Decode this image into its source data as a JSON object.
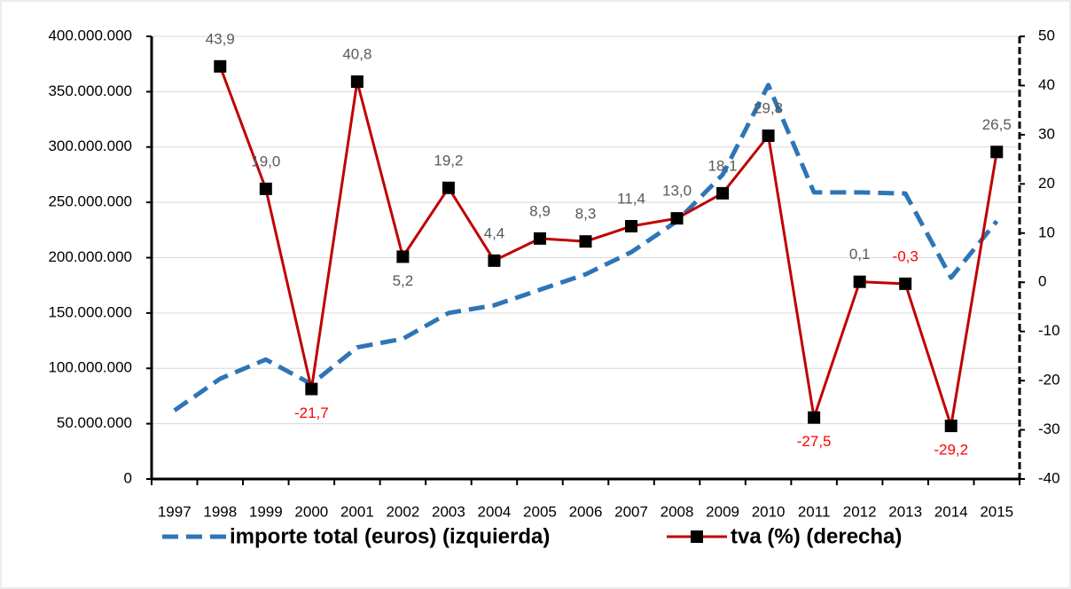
{
  "chart_data": {
    "type": "line",
    "categories": [
      "1997",
      "1998",
      "1999",
      "2000",
      "2001",
      "2002",
      "2003",
      "2004",
      "2005",
      "2006",
      "2007",
      "2008",
      "2009",
      "2010",
      "2011",
      "2012",
      "2013",
      "2014",
      "2015"
    ],
    "series": [
      {
        "name": "importe total (euros) (izquierda)",
        "color": "#2e75b6",
        "axis": "y",
        "dashed": true,
        "values": [
          62000000,
          90600000,
          108000000,
          85800000,
          119000000,
          126700000,
          150000000,
          157000000,
          171000000,
          185000000,
          205000000,
          233000000,
          275000000,
          356000000,
          259000000,
          259000000,
          258000000,
          182000000,
          233000000
        ]
      },
      {
        "name": "tva (%) (derecha)",
        "color": "#c00000",
        "axis": "y2",
        "marker": "square",
        "values": [
          null,
          43.9,
          19.0,
          -21.7,
          40.8,
          5.2,
          19.2,
          4.4,
          8.9,
          8.3,
          11.4,
          13.0,
          18.1,
          29.8,
          -27.5,
          0.1,
          -0.3,
          -29.2,
          26.5
        ],
        "value_labels": [
          null,
          "43,9",
          "19,0",
          "-21,7",
          "40,8",
          "5,2",
          "19,2",
          "4,4",
          "8,9",
          "8,3",
          "11,4",
          "13,0",
          "18,1",
          "29,8",
          "-27,5",
          "0,1",
          "-0,3",
          "-29,2",
          "26,5"
        ]
      }
    ],
    "ylim": [
      0,
      400000000
    ],
    "yticks": [
      0,
      {
        "value": 50000000,
        "label": "50.000.000"
      },
      {
        "value": 100000000,
        "label": "100.000.000"
      },
      {
        "value": 150000000,
        "label": "150.000.000"
      },
      {
        "value": 200000000,
        "label": "200.000.000"
      },
      {
        "value": 250000000,
        "label": "250.000.000"
      },
      {
        "value": 300000000,
        "label": "300.000.000"
      },
      {
        "value": 350000000,
        "label": "350.000.000"
      },
      {
        "value": 400000000,
        "label": "400.000.000"
      }
    ],
    "y2lim": [
      -40,
      50
    ],
    "y2ticks": [
      -40,
      -30,
      -20,
      -10,
      0,
      10,
      20,
      30,
      40,
      50
    ],
    "grid": true,
    "legend": "bottom"
  }
}
